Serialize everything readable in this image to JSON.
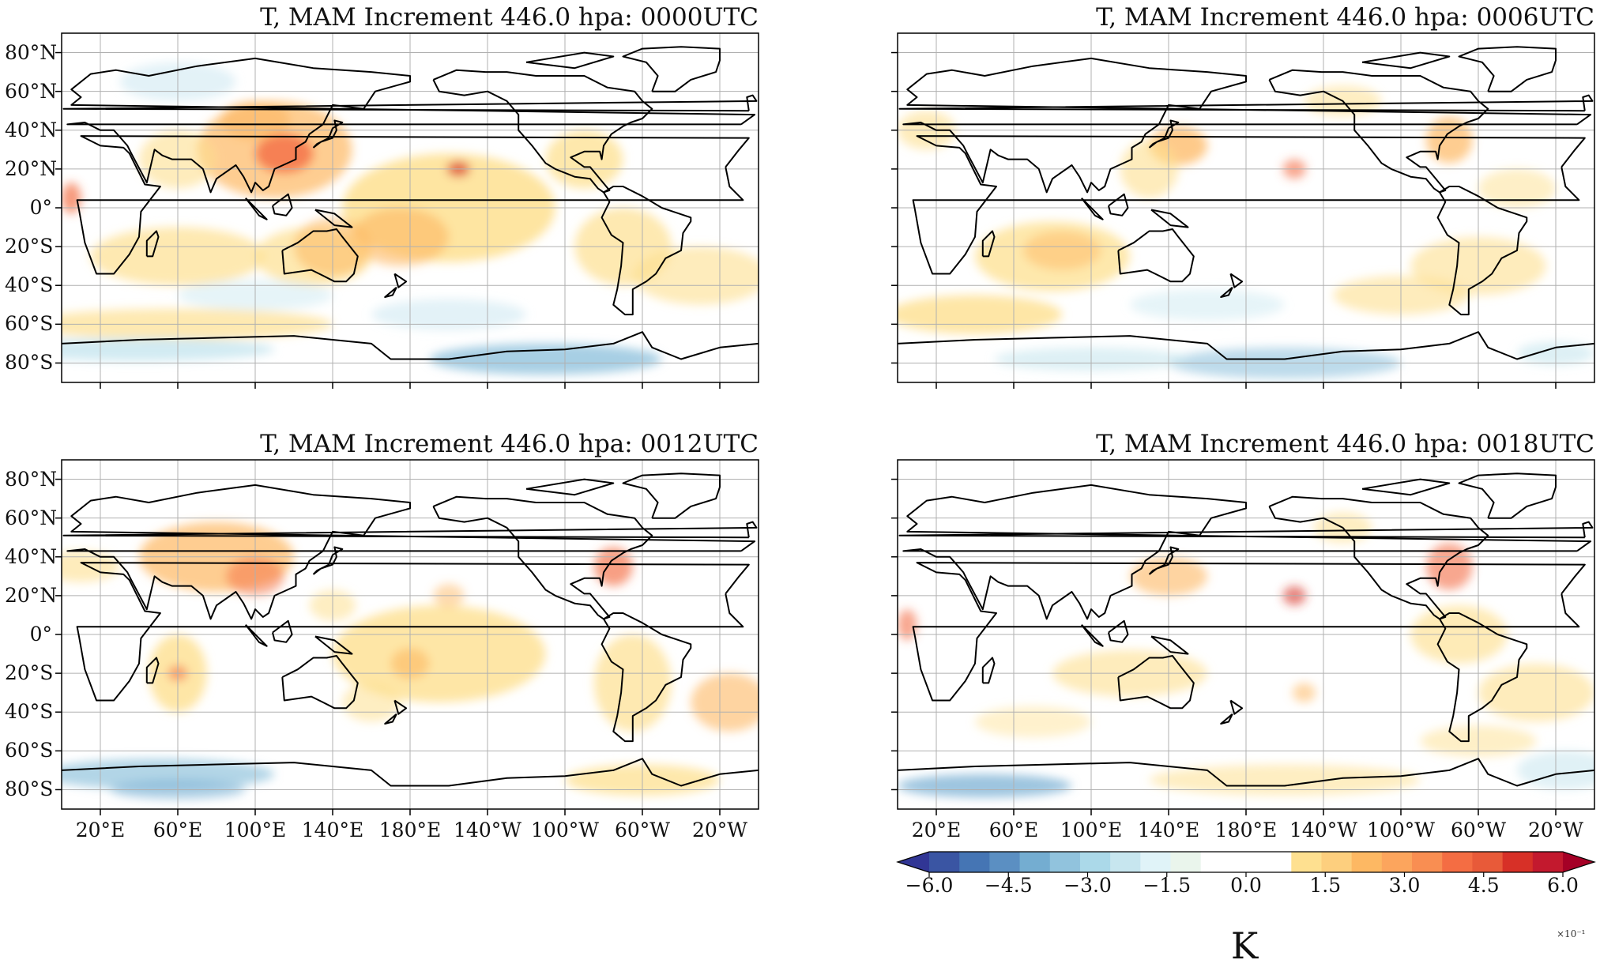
{
  "panels": [
    {
      "title": "T, MAM Increment 446.0 hpa: 0000UTC",
      "show_ylabels": true,
      "show_xlabels": false,
      "variant": 0
    },
    {
      "title": "T, MAM Increment 446.0 hpa: 0006UTC",
      "show_ylabels": false,
      "show_xlabels": false,
      "variant": 1
    },
    {
      "title": "T, MAM Increment 446.0 hpa: 0012UTC",
      "show_ylabels": true,
      "show_xlabels": true,
      "variant": 2
    },
    {
      "title": "T, MAM Increment 446.0 hpa: 0018UTC",
      "show_ylabels": false,
      "show_xlabels": true,
      "variant": 3
    }
  ],
  "lat_labels": [
    "80°N",
    "60°N",
    "40°N",
    "20°N",
    "0°",
    "20°S",
    "40°S",
    "60°S",
    "80°S"
  ],
  "lon_labels": [
    "20°E",
    "60°E",
    "100°E",
    "140°E",
    "180°E",
    "140°W",
    "100°W",
    "60°W",
    "20°W"
  ],
  "colorbar": {
    "tick_labels": [
      "−6.0",
      "−4.5",
      "−3.0",
      "−1.5",
      "0.0",
      "1.5",
      "3.0",
      "4.5",
      "6.0"
    ],
    "unit": "K",
    "exponent": "×10⁻¹",
    "colors": [
      "#313695",
      "#3a55a3",
      "#4575b4",
      "#5b8fc2",
      "#74add1",
      "#91c3dd",
      "#abd9e9",
      "#c7e6ef",
      "#e0f3f8",
      "#eaf5ec",
      "#ffffff",
      "#ffffff",
      "#ffffff",
      "#fee090",
      "#fdcf7e",
      "#fdb863",
      "#fca55d",
      "#f98e52",
      "#f46d43",
      "#e85a39",
      "#d73027",
      "#c3192e",
      "#a50026"
    ]
  }
}
